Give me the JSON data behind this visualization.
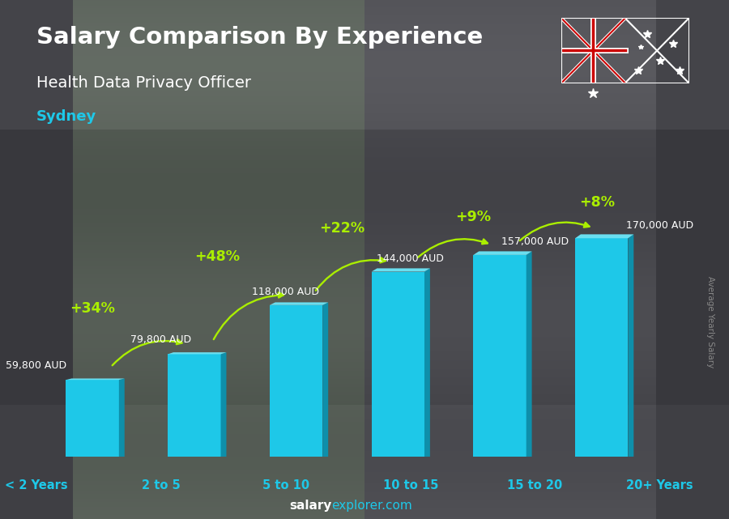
{
  "title_line1": "Salary Comparison By Experience",
  "title_line2": "Health Data Privacy Officer",
  "city": "Sydney",
  "categories": [
    "< 2 Years",
    "2 to 5",
    "5 to 10",
    "10 to 15",
    "15 to 20",
    "20+ Years"
  ],
  "values": [
    59800,
    79800,
    118000,
    144000,
    157000,
    170000
  ],
  "labels": [
    "59,800 AUD",
    "79,800 AUD",
    "118,000 AUD",
    "144,000 AUD",
    "157,000 AUD",
    "170,000 AUD"
  ],
  "pct_changes": [
    "+34%",
    "+48%",
    "+22%",
    "+9%",
    "+8%"
  ],
  "bar_color_face": "#1EC8E8",
  "bar_color_right": "#0E8FAA",
  "bar_color_top": "#6ADFF0",
  "title_color": "#FFFFFF",
  "subtitle_color": "#FFFFFF",
  "city_color": "#1EC8E8",
  "label_color": "#FFFFFF",
  "pct_color": "#AAEE00",
  "arrow_color": "#AAEE00",
  "xlabel_color": "#1EC8E8",
  "watermark_color": "#888888",
  "ylim": [
    0,
    210000
  ],
  "watermark": "Average Yearly Salary",
  "footer_bold": "salary",
  "footer_normal": "explorer.com",
  "footer_bold_color": "#FFFFFF",
  "footer_normal_color": "#1EC8E8"
}
